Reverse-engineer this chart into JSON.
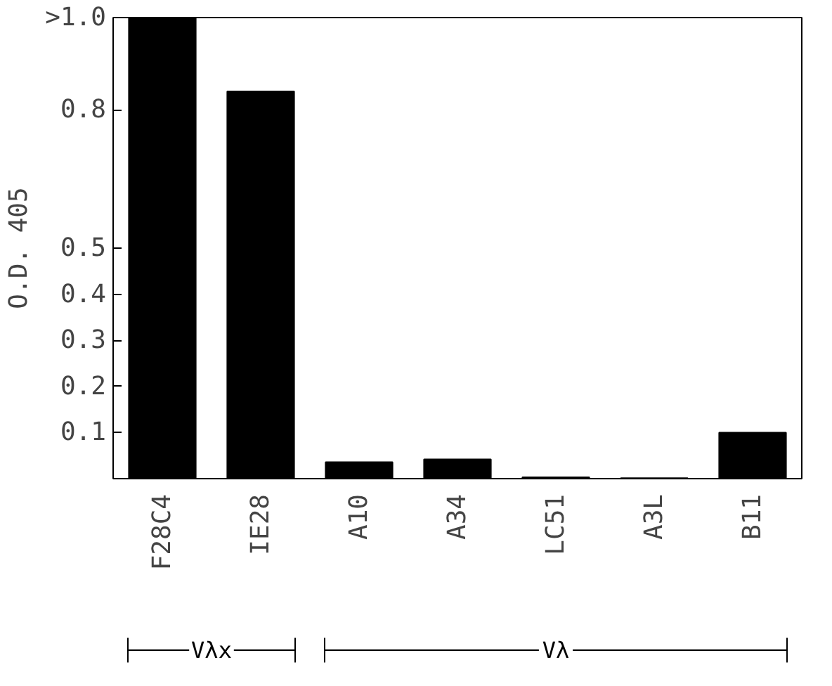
{
  "chart_data": {
    "type": "bar",
    "ylabel": "O.D. 405",
    "categories": [
      "F28C4",
      "IE28",
      "A10",
      "A34",
      "LC51",
      "A3L",
      "B11"
    ],
    "values": [
      1.0,
      0.84,
      0.036,
      0.042,
      0.003,
      0.001,
      0.1
    ],
    "color": "#000000",
    "ylim": [
      0,
      1.0
    ],
    "yticks": [
      0.1,
      0.2,
      0.3,
      0.4,
      0.5,
      0.8,
      {
        "value": 1.0,
        "label": ">1.0"
      }
    ],
    "grid": false,
    "annotations": [
      "Vλx",
      "Vλ"
    ]
  }
}
